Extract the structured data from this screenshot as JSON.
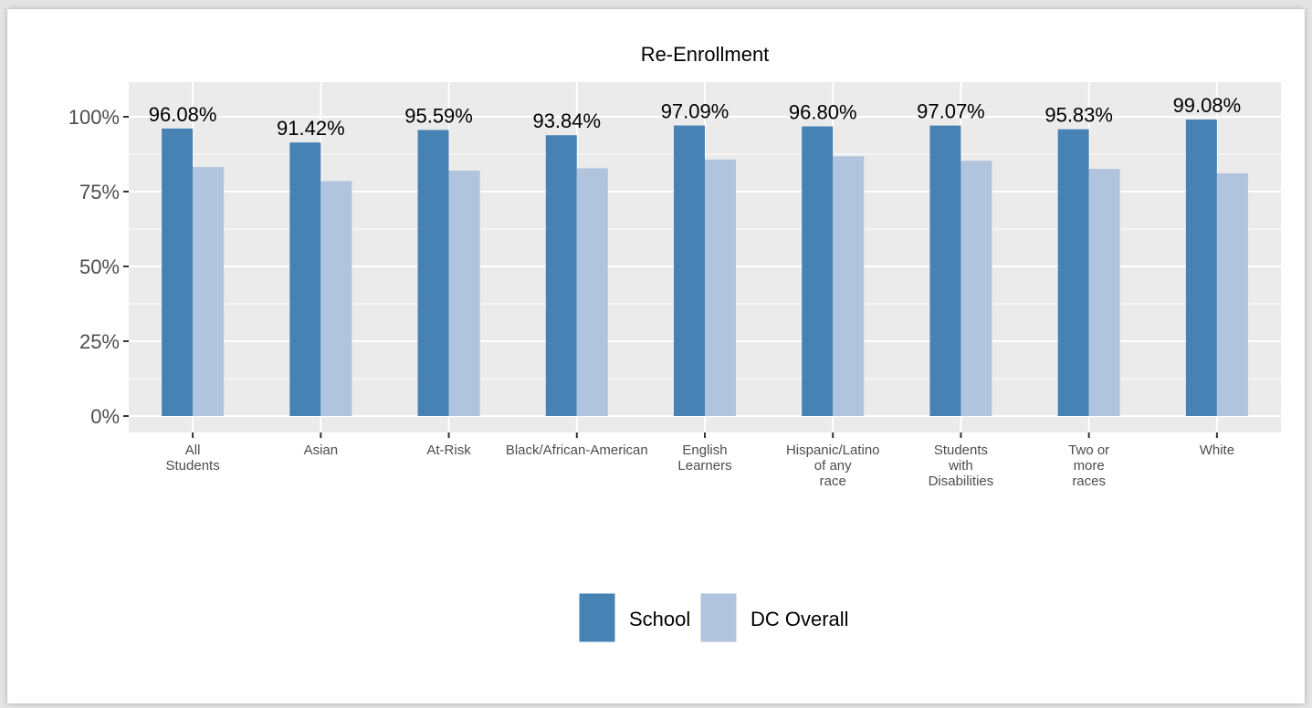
{
  "chart_data": {
    "type": "bar",
    "title": "Re-Enrollment",
    "xlabel": "",
    "ylabel": "",
    "categories": [
      [
        "All",
        "Students"
      ],
      [
        "Asian"
      ],
      [
        "At-Risk"
      ],
      [
        "Black/African-American"
      ],
      [
        "English",
        "Learners"
      ],
      [
        "Hispanic/Latino",
        "of any",
        "race"
      ],
      [
        "Students",
        "with",
        "Disabilities"
      ],
      [
        "Two or",
        "more",
        "races"
      ],
      [
        "White"
      ]
    ],
    "series": [
      {
        "name": "School",
        "color": "#4682b4",
        "values": [
          96.08,
          91.42,
          95.59,
          93.84,
          97.09,
          96.8,
          97.07,
          95.83,
          99.08
        ],
        "labels": [
          "96.08%",
          "91.42%",
          "95.59%",
          "93.84%",
          "97.09%",
          "96.80%",
          "97.07%",
          "95.83%",
          "99.08%"
        ]
      },
      {
        "name": "DC Overall",
        "color": "#b0c4de",
        "values": [
          83.2,
          78.5,
          82.0,
          82.8,
          85.7,
          86.8,
          85.3,
          82.6,
          81.1
        ]
      }
    ],
    "ylim": [
      0,
      110
    ],
    "yticks": [
      0,
      25,
      50,
      75,
      100
    ],
    "ytick_labels": [
      "0%",
      "25%",
      "50%",
      "75%",
      "100%"
    ],
    "grid": true,
    "legend_position": "bottom"
  }
}
